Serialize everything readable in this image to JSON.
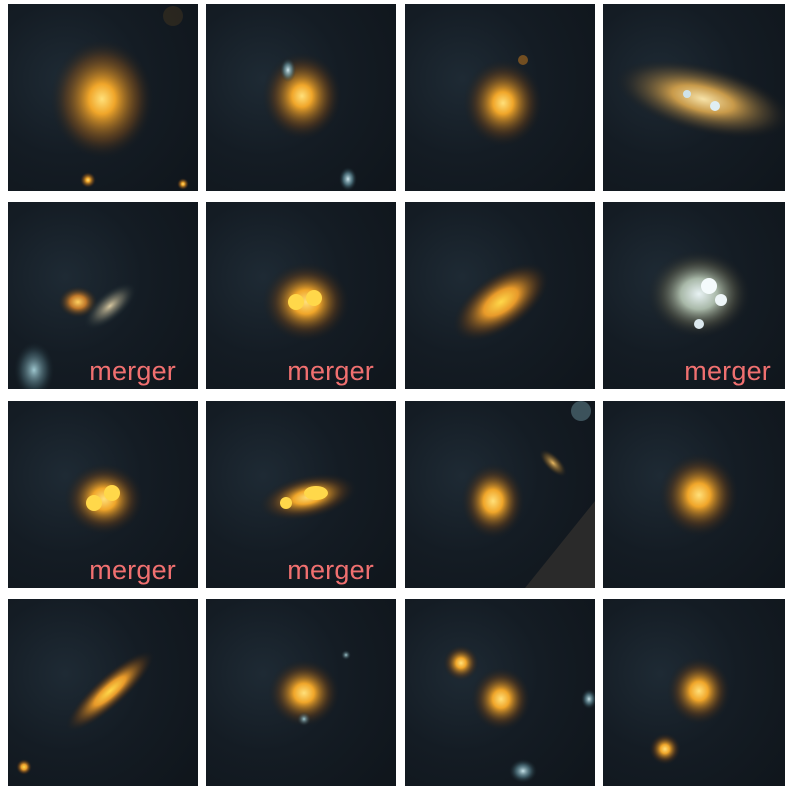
{
  "tiles": [
    {
      "label": ""
    },
    {
      "label": ""
    },
    {
      "label": ""
    },
    {
      "label": ""
    },
    {
      "label": "merger"
    },
    {
      "label": "merger"
    },
    {
      "label": ""
    },
    {
      "label": "merger"
    },
    {
      "label": "merger"
    },
    {
      "label": "merger"
    },
    {
      "label": ""
    },
    {
      "label": ""
    },
    {
      "label": ""
    },
    {
      "label": ""
    },
    {
      "label": ""
    },
    {
      "label": ""
    }
  ],
  "colors": {
    "label": "#f07070",
    "background": "#141c24",
    "galaxy_core": "#ffd23a",
    "galaxy_halo": "#c9781a"
  }
}
